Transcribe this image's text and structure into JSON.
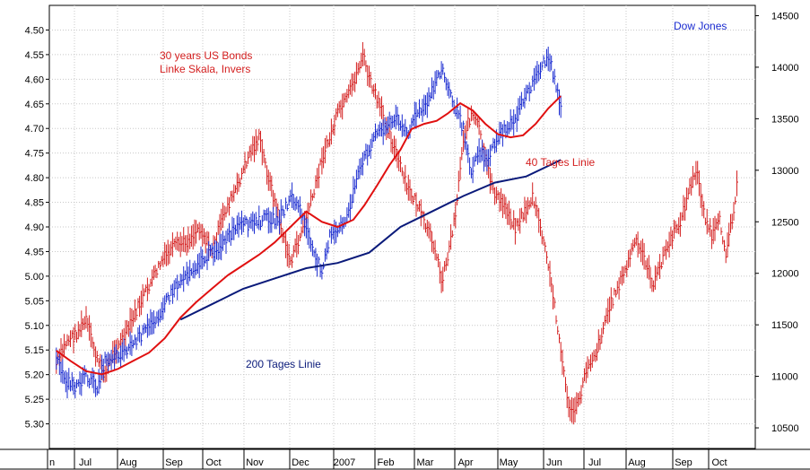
{
  "chart_data": {
    "type": "bar",
    "title": "",
    "grid": true,
    "left_axis": {
      "ticks": [
        "4.50",
        "4.55",
        "4.60",
        "4.65",
        "4.70",
        "4.75",
        "4.80",
        "4.85",
        "4.90",
        "4.95",
        "5.00",
        "5.05",
        "5.10",
        "5.15",
        "5.20",
        "5.25",
        "5.30"
      ],
      "ylim": [
        5.35,
        4.45
      ],
      "inverted": true
    },
    "right_axis": {
      "ticks": [
        "10500",
        "11000",
        "11500",
        "12000",
        "12500",
        "13000",
        "13500",
        "14000",
        "14500"
      ],
      "ylim": [
        10300,
        14600
      ]
    },
    "x_labels": [
      "n",
      "Jul",
      "Aug",
      "Sep",
      "Oct",
      "Nov",
      "Dec",
      "2007",
      "Feb",
      "Mar",
      "Apr",
      "May",
      "Jun",
      "Jul",
      "Aug",
      "Sep",
      "Oct"
    ],
    "annotations": {
      "bonds": [
        "30 years US Bonds",
        "Linke Skala, Invers"
      ],
      "dow": "Dow Jones",
      "ma40": "40 Tages Linie",
      "ma200": "200 Tages Linie"
    },
    "series": [
      {
        "name": "30 years US Bonds",
        "axis": "left",
        "color": "#d42020",
        "points": [
          [
            1,
            5.18
          ],
          [
            8,
            5.13
          ],
          [
            13,
            5.12
          ],
          [
            20,
            5.09
          ],
          [
            27,
            5.17
          ],
          [
            32,
            5.2
          ],
          [
            38,
            5.15
          ],
          [
            45,
            5.12
          ],
          [
            52,
            5.07
          ],
          [
            60,
            5.02
          ],
          [
            68,
            4.97
          ],
          [
            76,
            4.94
          ],
          [
            84,
            4.93
          ],
          [
            92,
            4.9
          ],
          [
            100,
            4.95
          ],
          [
            108,
            4.87
          ],
          [
            116,
            4.82
          ],
          [
            124,
            4.75
          ],
          [
            130,
            4.72
          ],
          [
            136,
            4.8
          ],
          [
            141,
            4.86
          ],
          [
            146,
            4.93
          ],
          [
            150,
            4.97
          ],
          [
            155,
            4.93
          ],
          [
            160,
            4.88
          ],
          [
            165,
            4.83
          ],
          [
            170,
            4.76
          ],
          [
            175,
            4.72
          ],
          [
            180,
            4.67
          ],
          [
            186,
            4.64
          ],
          [
            192,
            4.59
          ],
          [
            196,
            4.55
          ],
          [
            200,
            4.6
          ],
          [
            206,
            4.65
          ],
          [
            212,
            4.7
          ],
          [
            218,
            4.76
          ],
          [
            224,
            4.82
          ],
          [
            230,
            4.85
          ],
          [
            236,
            4.9
          ],
          [
            242,
            4.94
          ],
          [
            246,
            5.01
          ],
          [
            250,
            4.96
          ],
          [
            255,
            4.87
          ],
          [
            260,
            4.72
          ],
          [
            265,
            4.67
          ],
          [
            270,
            4.7
          ],
          [
            275,
            4.78
          ],
          [
            281,
            4.84
          ],
          [
            287,
            4.86
          ],
          [
            293,
            4.9
          ],
          [
            299,
            4.87
          ],
          [
            304,
            4.84
          ],
          [
            309,
            4.9
          ],
          [
            314,
            4.98
          ],
          [
            319,
            5.08
          ],
          [
            324,
            5.2
          ],
          [
            328,
            5.28
          ],
          [
            333,
            5.26
          ],
          [
            339,
            5.18
          ],
          [
            345,
            5.15
          ],
          [
            351,
            5.08
          ],
          [
            357,
            5.03
          ],
          [
            363,
            4.99
          ],
          [
            369,
            4.93
          ],
          [
            375,
            4.96
          ],
          [
            381,
            5.02
          ],
          [
            387,
            4.96
          ],
          [
            393,
            4.92
          ],
          [
            399,
            4.88
          ],
          [
            405,
            4.81
          ],
          [
            409,
            4.79
          ],
          [
            413,
            4.87
          ],
          [
            418,
            4.92
          ],
          [
            423,
            4.89
          ],
          [
            427,
            4.95
          ],
          [
            431,
            4.88
          ],
          [
            434,
            4.82
          ]
        ]
      },
      {
        "name": "Dow Jones",
        "axis": "right",
        "color": "#1a2bd0",
        "points": [
          [
            1,
            11150
          ],
          [
            8,
            10950
          ],
          [
            13,
            10900
          ],
          [
            20,
            11000
          ],
          [
            27,
            10900
          ],
          [
            32,
            11150
          ],
          [
            38,
            11200
          ],
          [
            45,
            11250
          ],
          [
            52,
            11350
          ],
          [
            60,
            11480
          ],
          [
            68,
            11650
          ],
          [
            76,
            11850
          ],
          [
            84,
            12000
          ],
          [
            92,
            12100
          ],
          [
            100,
            12200
          ],
          [
            108,
            12300
          ],
          [
            116,
            12450
          ],
          [
            124,
            12480
          ],
          [
            130,
            12500
          ],
          [
            136,
            12550
          ],
          [
            141,
            12500
          ],
          [
            146,
            12600
          ],
          [
            150,
            12750
          ],
          [
            155,
            12650
          ],
          [
            160,
            12450
          ],
          [
            165,
            12150
          ],
          [
            170,
            12050
          ],
          [
            175,
            12350
          ],
          [
            180,
            12400
          ],
          [
            186,
            12550
          ],
          [
            192,
            12900
          ],
          [
            198,
            13150
          ],
          [
            204,
            13350
          ],
          [
            212,
            13450
          ],
          [
            219,
            13500
          ],
          [
            225,
            13350
          ],
          [
            230,
            13550
          ],
          [
            236,
            13600
          ],
          [
            242,
            13850
          ],
          [
            246,
            14000
          ],
          [
            250,
            13800
          ],
          [
            255,
            13600
          ],
          [
            260,
            13400
          ],
          [
            265,
            13000
          ],
          [
            270,
            13200
          ],
          [
            275,
            13100
          ],
          [
            281,
            13300
          ],
          [
            287,
            13400
          ],
          [
            293,
            13500
          ],
          [
            299,
            13700
          ],
          [
            304,
            13850
          ],
          [
            309,
            14000
          ],
          [
            314,
            14100
          ],
          [
            318,
            13900
          ],
          [
            322,
            13600
          ]
        ]
      },
      {
        "name": "40 Tages Linie",
        "axis": "right",
        "color": "#e01010",
        "points": [
          [
            1,
            11250
          ],
          [
            10,
            11150
          ],
          [
            20,
            11050
          ],
          [
            30,
            11020
          ],
          [
            40,
            11070
          ],
          [
            50,
            11150
          ],
          [
            60,
            11230
          ],
          [
            70,
            11370
          ],
          [
            80,
            11570
          ],
          [
            90,
            11720
          ],
          [
            100,
            11850
          ],
          [
            110,
            11980
          ],
          [
            120,
            12080
          ],
          [
            130,
            12180
          ],
          [
            140,
            12300
          ],
          [
            150,
            12450
          ],
          [
            160,
            12600
          ],
          [
            170,
            12500
          ],
          [
            180,
            12450
          ],
          [
            190,
            12520
          ],
          [
            197,
            12660
          ],
          [
            205,
            12850
          ],
          [
            213,
            13050
          ],
          [
            220,
            13200
          ],
          [
            227,
            13400
          ],
          [
            235,
            13450
          ],
          [
            243,
            13480
          ],
          [
            250,
            13550
          ],
          [
            258,
            13650
          ],
          [
            266,
            13580
          ],
          [
            274,
            13450
          ],
          [
            282,
            13350
          ],
          [
            290,
            13320
          ],
          [
            298,
            13340
          ],
          [
            306,
            13450
          ],
          [
            314,
            13600
          ],
          [
            322,
            13720
          ]
        ]
      },
      {
        "name": "200 Tages Linie",
        "axis": "right",
        "color": "#0a1a7a",
        "points": [
          [
            80,
            11550
          ],
          [
            100,
            11700
          ],
          [
            120,
            11850
          ],
          [
            140,
            11950
          ],
          [
            160,
            12050
          ],
          [
            180,
            12100
          ],
          [
            200,
            12200
          ],
          [
            220,
            12450
          ],
          [
            240,
            12600
          ],
          [
            260,
            12750
          ],
          [
            280,
            12880
          ],
          [
            300,
            12940
          ],
          [
            315,
            13050
          ],
          [
            322,
            13100
          ]
        ]
      }
    ]
  }
}
